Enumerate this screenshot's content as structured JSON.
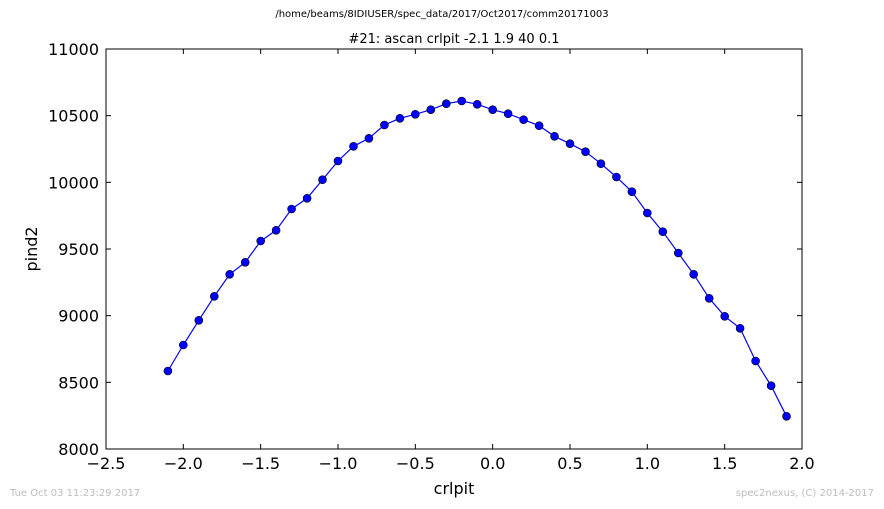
{
  "header": {
    "suptitle": "/home/beams/8IDIUSER/spec_data/2017/Oct2017/comm20171003"
  },
  "footer": {
    "timestamp": "Tue Oct 03 11:23:29 2017",
    "credit": "spec2nexus, (C) 2014-2017"
  },
  "chart_data": {
    "type": "line",
    "title": "#21: ascan  crlpit -2.1 1.9  40 0.1",
    "xlabel": "crlpit",
    "ylabel": "pind2",
    "xlim": [
      -2.5,
      2.0
    ],
    "ylim": [
      8000,
      11000
    ],
    "xticks": [
      "−2.5",
      "−2.0",
      "−1.5",
      "−1.0",
      "−0.5",
      "0.0",
      "0.5",
      "1.0",
      "1.5",
      "2.0"
    ],
    "yticks": [
      "8000",
      "8500",
      "9000",
      "9500",
      "10000",
      "10500",
      "11000"
    ],
    "grid": false,
    "series": [
      {
        "color": "#0000ff",
        "marker": "circle",
        "x": [
          -2.1,
          -2.0,
          -1.9,
          -1.8,
          -1.7,
          -1.6,
          -1.5,
          -1.4,
          -1.3,
          -1.2,
          -1.1,
          -1.0,
          -0.9,
          -0.8,
          -0.7,
          -0.6,
          -0.5,
          -0.4,
          -0.3,
          -0.2,
          -0.1,
          0.0,
          0.1,
          0.2,
          0.3,
          0.4,
          0.5,
          0.6,
          0.7,
          0.8,
          0.9,
          1.0,
          1.1,
          1.2,
          1.3,
          1.4,
          1.5,
          1.6,
          1.7,
          1.8,
          1.9
        ],
        "y": [
          8585,
          8780,
          8965,
          9145,
          9310,
          9400,
          9560,
          9640,
          9800,
          9880,
          10020,
          10160,
          10270,
          10330,
          10430,
          10480,
          10510,
          10545,
          10590,
          10610,
          10585,
          10545,
          10515,
          10470,
          10425,
          10345,
          10290,
          10230,
          10140,
          10040,
          9930,
          9770,
          9630,
          9470,
          9310,
          9130,
          8995,
          8905,
          8660,
          8475,
          8245
        ]
      }
    ]
  }
}
